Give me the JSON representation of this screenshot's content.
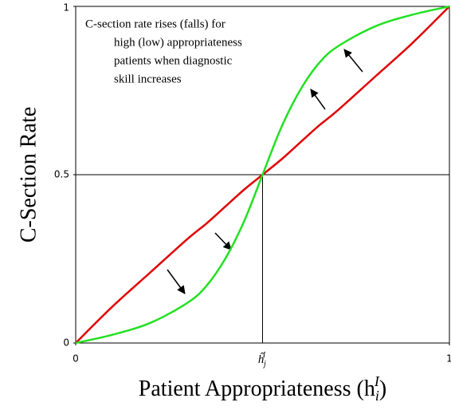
{
  "chart_data": {
    "type": "line",
    "ylabel": "C-Section Rate",
    "xlabel": {
      "text": "Patient Appropriateness (h",
      "subscript": "i",
      "superscript": "I",
      "suffix": ")"
    },
    "annotation": [
      "C-section rate rises (falls) for",
      "high (low) appropriateness",
      "patients when diagnostic",
      "skill increases"
    ],
    "x": [
      0,
      0.1,
      0.2,
      0.3,
      0.35,
      0.4,
      0.45,
      0.5,
      0.55,
      0.6,
      0.65,
      0.7,
      0.8,
      0.9,
      1
    ],
    "series": [
      {
        "color": "#e00000",
        "values": [
          0,
          0.11,
          0.21,
          0.31,
          0.355,
          0.405,
          0.455,
          0.5,
          0.545,
          0.595,
          0.645,
          0.69,
          0.79,
          0.89,
          1
        ]
      },
      {
        "color": "#22e022",
        "values": [
          0,
          0.025,
          0.06,
          0.12,
          0.17,
          0.25,
          0.36,
          0.5,
          0.64,
          0.75,
          0.83,
          0.88,
          0.94,
          0.975,
          1
        ]
      }
    ],
    "xlim": [
      0,
      1
    ],
    "ylim": [
      0,
      1
    ],
    "xticks": [
      0,
      {
        "value": 0.5,
        "label": "ĥ",
        "subscript": "j",
        "superscript": "I"
      },
      1
    ],
    "yticks": [
      0,
      0.5,
      1
    ],
    "reference_lines": true
  }
}
